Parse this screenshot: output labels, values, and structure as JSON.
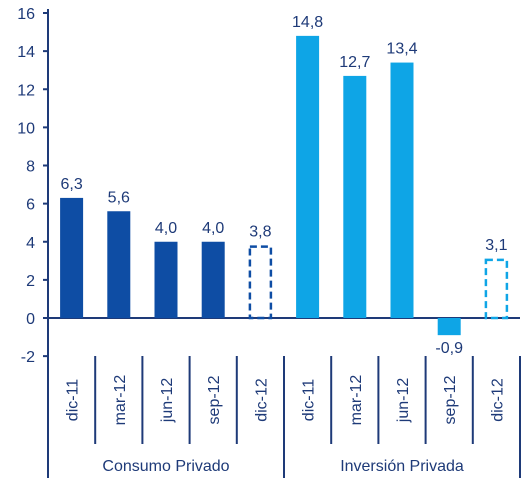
{
  "chart_data": {
    "type": "bar",
    "title": "",
    "xlabel": "",
    "ylabel": "",
    "ylim": [
      -2,
      16
    ],
    "yticks": [
      "16",
      "14",
      "12",
      "10",
      "8",
      "6",
      "4",
      "2",
      "0",
      "-2"
    ],
    "ytick_values": [
      16,
      14,
      12,
      10,
      8,
      6,
      4,
      2,
      0,
      -2
    ],
    "grid": false,
    "legend": "none",
    "groups": [
      {
        "name": "Consumo Privado",
        "color": "#0e4da4",
        "categories": [
          "dic-11",
          "mar-12",
          "jun-12",
          "sep-12",
          "dic-12"
        ],
        "values": [
          6.3,
          5.6,
          4.0,
          4.0,
          3.8
        ],
        "labels": [
          "6,3",
          "5,6",
          "4,0",
          "4,0",
          "3,8"
        ],
        "style": [
          "solid",
          "solid",
          "solid",
          "solid",
          "dashed"
        ]
      },
      {
        "name": "Inversión Privada",
        "color": "#0ea5e6",
        "categories": [
          "dic-11",
          "mar-12",
          "jun-12",
          "sep-12",
          "dic-12"
        ],
        "values": [
          14.8,
          12.7,
          13.4,
          -0.9,
          3.1
        ],
        "labels": [
          "14,8",
          "12,7",
          "13,4",
          "-0,9",
          "3,1"
        ],
        "style": [
          "solid",
          "solid",
          "solid",
          "solid",
          "dashed"
        ]
      }
    ],
    "colors": {
      "axis": "#1e3a78",
      "text": "#1e3a78"
    }
  }
}
